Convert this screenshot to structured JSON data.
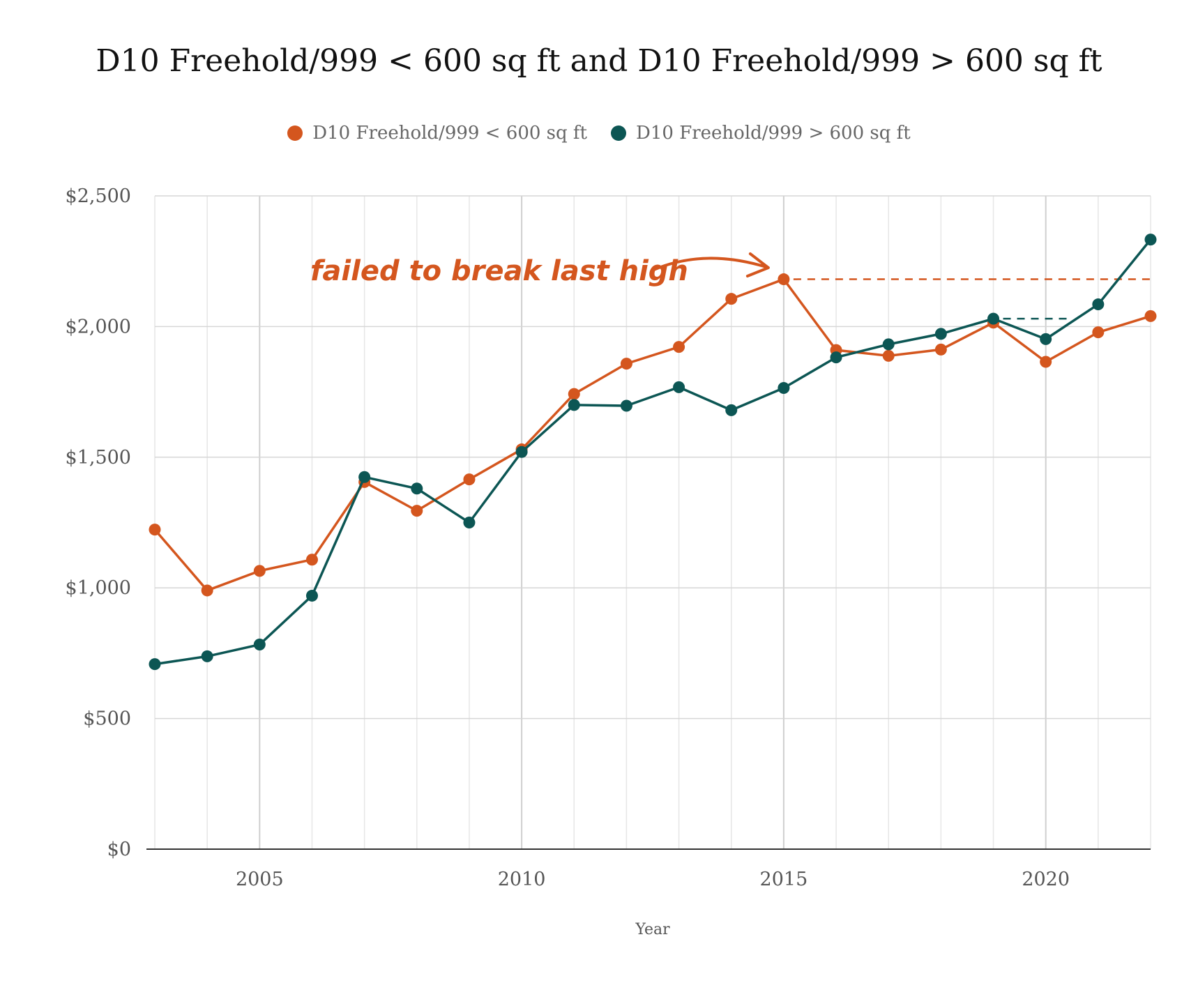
{
  "chart_data": {
    "type": "line",
    "title": "D10 Freehold/999 < 600 sq ft and D10 Freehold/999 > 600 sq ft",
    "xlabel": "Year",
    "ylabel": "",
    "x": [
      2003,
      2004,
      2005,
      2006,
      2007,
      2008,
      2009,
      2010,
      2011,
      2012,
      2013,
      2014,
      2015,
      2016,
      2017,
      2018,
      2019,
      2020,
      2021,
      2022
    ],
    "xlim": [
      2003,
      2022
    ],
    "ylim": [
      0,
      2500
    ],
    "x_ticks": [
      2005,
      2010,
      2015,
      2020
    ],
    "x_tick_labels": [
      "2005",
      "2010",
      "2015",
      "2020"
    ],
    "y_ticks": [
      0,
      500,
      1000,
      1500,
      2000,
      2500
    ],
    "y_tick_labels": [
      "$0",
      "$500",
      "$1,000",
      "$1,500",
      "$2,000",
      "$2,500"
    ],
    "grid": true,
    "legend_position": "top-center",
    "series": [
      {
        "name": "D10 Freehold/999 < 600 sq ft",
        "color": "#d4561e",
        "values": [
          1223,
          990,
          1065,
          1108,
          1405,
          1295,
          1415,
          1530,
          1742,
          1858,
          1922,
          2106,
          2181,
          1910,
          1888,
          1912,
          2015,
          1865,
          1978,
          2040
        ]
      },
      {
        "name": "D10 Freehold/999 > 600 sq ft",
        "color": "#0c5654",
        "values": [
          708,
          738,
          783,
          970,
          1424,
          1380,
          1250,
          1520,
          1700,
          1697,
          1768,
          1680,
          1765,
          1882,
          1932,
          1972,
          2030,
          1952,
          2085,
          2333
        ]
      }
    ],
    "reference_lines": [
      {
        "series": 0,
        "from_x": 2015,
        "to_x": 2022,
        "y": 2181,
        "style": "dashed"
      },
      {
        "series": 1,
        "from_x": 2019,
        "to_x": 2020.5,
        "y": 2030,
        "style": "dashed"
      }
    ],
    "annotation": {
      "text": "failed to break last high",
      "color": "#d4561e",
      "points_to_x": 2015
    }
  }
}
